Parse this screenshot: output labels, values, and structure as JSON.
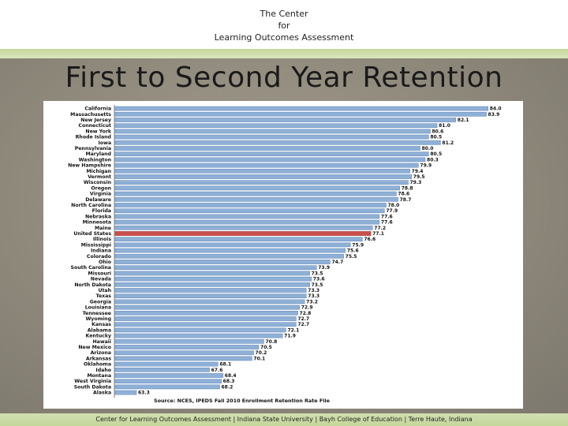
{
  "header": {
    "line1": "The Center",
    "line2": "for",
    "line3": "Learning Outcomes Assessment"
  },
  "slide": {
    "title": "First to Second Year Retention"
  },
  "footer": {
    "text": "Center for Learning Outcomes Assessment | Indiana State University | Bayh College of Education | Terre Haute, Indiana"
  },
  "colors": {
    "bar": "#8fb0d6",
    "bar_edge": "#5f86b8",
    "highlight": "#c9504b"
  },
  "chart_data": {
    "type": "bar",
    "orientation": "horizontal",
    "source": "Source: NCES, IPEDS Fall 2010 Enrollment Retention Rate File",
    "categories": [
      "California",
      "Massachusetts",
      "New Jersey",
      "Connecticut",
      "New York",
      "Rhode Island",
      "Iowa",
      "Pennsylvania",
      "Maryland",
      "Washington",
      "New Hampshire",
      "Michigan",
      "Vermont",
      "Wisconsin",
      "Oregon",
      "Virginia",
      "Delaware",
      "North Carolina",
      "Florida",
      "Nebraska",
      "Minnesota",
      "Maine",
      "United States",
      "Illinois",
      "Mississippi",
      "Indiana",
      "Colorado",
      "Ohio",
      "South Carolina",
      "Missouri",
      "Nevada",
      "North Dakota",
      "Utah",
      "Texas",
      "Georgia",
      "Louisiana",
      "Tennessee",
      "Wyoming",
      "Kansas",
      "Alabama",
      "Kentucky",
      "Hawaii",
      "New Mexico",
      "Arizona",
      "Arkansas",
      "Oklahoma",
      "Idaho",
      "Montana",
      "West Virginia",
      "South Dakota",
      "Alaska"
    ],
    "values": [
      84.0,
      83.9,
      82.1,
      81.0,
      80.6,
      80.5,
      81.2,
      80.0,
      80.5,
      80.3,
      79.9,
      79.4,
      79.5,
      79.3,
      78.8,
      78.6,
      78.7,
      78.0,
      77.9,
      77.6,
      77.6,
      77.2,
      77.1,
      76.6,
      75.9,
      75.6,
      75.5,
      74.7,
      73.9,
      73.5,
      73.6,
      73.5,
      73.3,
      73.3,
      73.2,
      72.9,
      72.8,
      72.7,
      72.7,
      72.1,
      71.9,
      70.8,
      70.5,
      70.2,
      70.1,
      68.1,
      67.6,
      68.4,
      68.3,
      68.2,
      63.3
    ],
    "value_labels": [
      "84.0",
      "83.9",
      "82.1",
      "81.0",
      "80.6",
      "80.5",
      "81.2",
      "80.0",
      "80.5",
      "80.3",
      "79.9",
      "79.4",
      "79.5",
      "79.3",
      "78.8",
      "78.6",
      "78.7",
      "78.0",
      "77.9",
      "77.6",
      "77.6",
      "77.2",
      "77.1",
      "76.6",
      "75.9",
      "75.6",
      "75.5",
      "74.7",
      "73.9",
      "73.5",
      "73.6",
      "73.5",
      "73.3",
      "73.3",
      "73.2",
      "72.9",
      "72.8",
      "72.7",
      "72.7",
      "72.1",
      "71.9",
      "70.8",
      "70.5",
      "70.2",
      "70.1",
      "68.1",
      "67.6",
      "68.4",
      "68.3",
      "68.2",
      "63.3"
    ],
    "highlight_category": "United States",
    "xlim": [
      62.0,
      84.2
    ],
    "grid": false,
    "legend": "none"
  }
}
